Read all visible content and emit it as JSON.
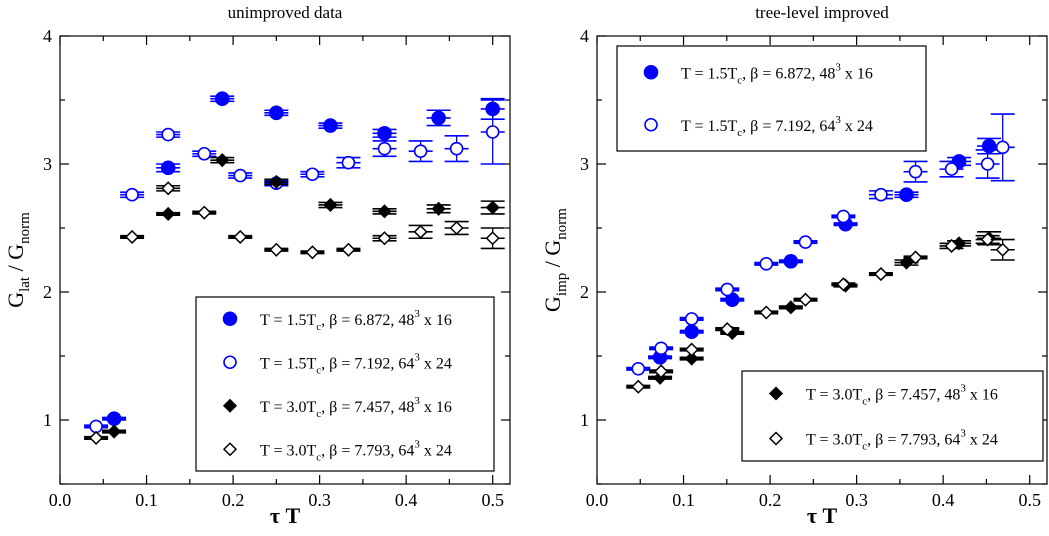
{
  "chart_data": [
    {
      "type": "scatter",
      "title": "unimproved data",
      "xlabel": "τ T",
      "ylabel": {
        "a": "G",
        "a_sub": "lat",
        "sep": " / ",
        "b": "G",
        "b_sub": "norm"
      },
      "xlim": [
        0.0,
        0.52
      ],
      "ylim": [
        0.5,
        4.0
      ],
      "xticks": [
        "0.0",
        "0.1",
        "0.2",
        "0.3",
        "0.4",
        "0.5"
      ],
      "yticks": [
        "1",
        "2",
        "3",
        "4"
      ],
      "legend": "bottom-right",
      "series": [
        {
          "name": {
            "p1": "T = 1.5T",
            "sub": "c",
            "p2": ", β = 6.872, 48",
            "sup": "3",
            "p3": " x 16"
          },
          "marker": "circle-filled",
          "color": "#0000ff",
          "points": [
            [
              0.0625,
              1.01,
              0.01
            ],
            [
              0.125,
              2.97,
              0.03
            ],
            [
              0.1875,
              3.51,
              0.02
            ],
            [
              0.25,
              3.4,
              0.02
            ],
            [
              0.3125,
              3.3,
              0.02
            ],
            [
              0.375,
              3.24,
              0.03
            ],
            [
              0.4375,
              3.36,
              0.06
            ],
            [
              0.5,
              3.43,
              0.08
            ]
          ]
        },
        {
          "name": {
            "p1": "T = 1.5T",
            "sub": "c",
            "p2": ", β = 7.192, 64",
            "sup": "3",
            "p3": " x 24"
          },
          "marker": "circle-open",
          "color": "#0000ff",
          "points": [
            [
              0.0417,
              0.95,
              0.01
            ],
            [
              0.0833,
              2.76,
              0.02
            ],
            [
              0.125,
              3.23,
              0.02
            ],
            [
              0.1667,
              3.08,
              0.02
            ],
            [
              0.2083,
              2.91,
              0.02
            ],
            [
              0.25,
              2.85,
              0.02
            ],
            [
              0.2917,
              2.92,
              0.02
            ],
            [
              0.3333,
              3.01,
              0.04
            ],
            [
              0.375,
              3.12,
              0.06
            ],
            [
              0.4167,
              3.1,
              0.08
            ],
            [
              0.4583,
              3.12,
              0.1
            ],
            [
              0.5,
              3.25,
              0.25
            ]
          ]
        },
        {
          "name": {
            "p1": "T = 3.0T",
            "sub": "c",
            "p2": ", β = 7.457, 48",
            "sup": "3",
            "p3": " x 16"
          },
          "marker": "diamond-filled",
          "color": "#000000",
          "points": [
            [
              0.0625,
              0.91,
              0.01
            ],
            [
              0.125,
              2.61,
              0.01
            ],
            [
              0.1875,
              3.03,
              0.02
            ],
            [
              0.25,
              2.86,
              0.02
            ],
            [
              0.3125,
              2.68,
              0.02
            ],
            [
              0.375,
              2.63,
              0.02
            ],
            [
              0.4375,
              2.65,
              0.03
            ],
            [
              0.5,
              2.66,
              0.05
            ]
          ]
        },
        {
          "name": {
            "p1": "T = 3.0T",
            "sub": "c",
            "p2": ", β = 7.793, 64",
            "sup": "3",
            "p3": " x 24"
          },
          "marker": "diamond-open",
          "color": "#000000",
          "points": [
            [
              0.0417,
              0.86,
              0.01
            ],
            [
              0.0833,
              2.43,
              0.01
            ],
            [
              0.125,
              2.81,
              0.02
            ],
            [
              0.1667,
              2.62,
              0.01
            ],
            [
              0.2083,
              2.43,
              0.01
            ],
            [
              0.25,
              2.33,
              0.01
            ],
            [
              0.2917,
              2.31,
              0.01
            ],
            [
              0.3333,
              2.33,
              0.01
            ],
            [
              0.375,
              2.42,
              0.02
            ],
            [
              0.4167,
              2.47,
              0.05
            ],
            [
              0.4583,
              2.5,
              0.05
            ],
            [
              0.5,
              2.42,
              0.08
            ]
          ]
        }
      ]
    },
    {
      "type": "scatter",
      "title": "tree-level improved",
      "xlabel": "τ T",
      "ylabel": {
        "a": "G",
        "a_sub": "imp",
        "sep": " / ",
        "b": "G",
        "b_sub": "norm"
      },
      "xlim": [
        0.0,
        0.52
      ],
      "ylim": [
        0.5,
        4.0
      ],
      "xticks": [
        "0.0",
        "0.1",
        "0.2",
        "0.3",
        "0.4",
        "0.5"
      ],
      "yticks": [
        "1",
        "2",
        "3",
        "4"
      ],
      "legend": "top-left and bottom-right",
      "series": [
        {
          "name": {
            "p1": "T = 1.5T",
            "sub": "c",
            "p2": ", β = 6.872, 48",
            "sup": "3",
            "p3": " x 16"
          },
          "marker": "circle-filled",
          "color": "#0000ff",
          "legend_box": 0,
          "points": [
            [
              0.0729,
              1.49,
              0.01
            ],
            [
              0.1094,
              1.69,
              0.01
            ],
            [
              0.1563,
              1.94,
              0.01
            ],
            [
              0.224,
              2.24,
              0.01
            ],
            [
              0.2872,
              2.53,
              0.01
            ],
            [
              0.3576,
              2.76,
              0.02
            ],
            [
              0.4184,
              3.02,
              0.03
            ],
            [
              0.4531,
              3.14,
              0.06
            ]
          ]
        },
        {
          "name": {
            "p1": "T = 1.5T",
            "sub": "c",
            "p2": ", β = 7.192, 64",
            "sup": "3",
            "p3": " x 24"
          },
          "marker": "circle-open",
          "color": "#0000ff",
          "legend_box": 0,
          "points": [
            [
              0.0477,
              1.4,
              0.01
            ],
            [
              0.0741,
              1.56,
              0.01
            ],
            [
              0.1094,
              1.79,
              0.01
            ],
            [
              0.1505,
              2.02,
              0.01
            ],
            [
              0.1956,
              2.22,
              0.01
            ],
            [
              0.2409,
              2.39,
              0.01
            ],
            [
              0.2847,
              2.59,
              0.01
            ],
            [
              0.3281,
              2.76,
              0.03
            ],
            [
              0.3681,
              2.94,
              0.08
            ],
            [
              0.4097,
              2.96,
              0.06
            ],
            [
              0.4514,
              3.0,
              0.11
            ],
            [
              0.4688,
              3.13,
              0.26
            ]
          ]
        },
        {
          "name": {
            "p1": "T = 3.0T",
            "sub": "c",
            "p2": ", β = 7.457, 48",
            "sup": "3",
            "p3": " x 16"
          },
          "marker": "diamond-filled",
          "color": "#000000",
          "legend_box": 1,
          "points": [
            [
              0.0729,
              1.33,
              0.01
            ],
            [
              0.1094,
              1.48,
              0.01
            ],
            [
              0.1563,
              1.68,
              0.01
            ],
            [
              0.224,
              1.88,
              0.01
            ],
            [
              0.2872,
              2.05,
              0.01
            ],
            [
              0.3576,
              2.23,
              0.02
            ],
            [
              0.4184,
              2.38,
              0.02
            ],
            [
              0.4531,
              2.42,
              0.05
            ]
          ]
        },
        {
          "name": {
            "p1": "T = 3.0T",
            "sub": "c",
            "p2": ", β = 7.793, 64",
            "sup": "3",
            "p3": " x 24"
          },
          "marker": "diamond-open",
          "color": "#000000",
          "legend_box": 1,
          "points": [
            [
              0.0477,
              1.26,
              0.01
            ],
            [
              0.0741,
              1.38,
              0.01
            ],
            [
              0.1094,
              1.55,
              0.01
            ],
            [
              0.1505,
              1.71,
              0.01
            ],
            [
              0.1956,
              1.84,
              0.01
            ],
            [
              0.2409,
              1.94,
              0.01
            ],
            [
              0.2847,
              2.06,
              0.01
            ],
            [
              0.3281,
              2.14,
              0.01
            ],
            [
              0.3681,
              2.27,
              0.01
            ],
            [
              0.4097,
              2.36,
              0.02
            ],
            [
              0.4514,
              2.41,
              0.03
            ],
            [
              0.4688,
              2.33,
              0.08
            ]
          ]
        }
      ]
    }
  ]
}
